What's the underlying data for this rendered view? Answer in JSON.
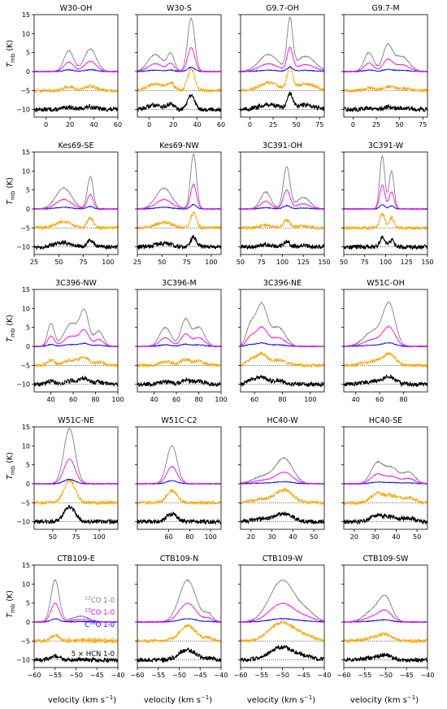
{
  "figure": {
    "ylabel_main": "T",
    "ylabel_sub": "mb",
    "ylabel_unit": " (K)",
    "xlabel": "velocity (km s",
    "xlabel_sup": "−1",
    "xlabel_close": ")"
  },
  "legend": [
    {
      "pre": "",
      "sup": "12",
      "post": "CO 1-0",
      "color": "#808080"
    },
    {
      "pre": "",
      "sup": "13",
      "post": "CO 1-0",
      "color": "#ff00ff"
    },
    {
      "pre": "C",
      "sup": "18",
      "post": "O 1-0",
      "color": "#0000ff"
    },
    {
      "pre": "5 × HCO",
      "sup": "+",
      "post": " 1-0",
      "color": "#ffa500"
    },
    {
      "pre": "5 × HCN 1-0",
      "sup": "",
      "post": "",
      "color": "#000000"
    }
  ],
  "colors": {
    "co12": "#808080",
    "co13": "#ff00ff",
    "c18o": "#0000ff",
    "hco": "#ffa500",
    "hcn": "#000000"
  },
  "chart_data": {
    "type": "line",
    "y_ticks": [
      -10,
      -5,
      0,
      5,
      10,
      15
    ],
    "ylim": [
      -12,
      15
    ],
    "offsets": {
      "co12": 0,
      "co13": 0,
      "c18o": 0,
      "hco": -5,
      "hcn": -10
    },
    "panels": [
      {
        "title": "W30-OH",
        "xlim": [
          -10,
          60
        ],
        "xticks": [
          0,
          20,
          40,
          60
        ],
        "components": [
          [
            19,
            4,
            5.5
          ],
          [
            37,
            5,
            6
          ]
        ],
        "ratio": 0.2
      },
      {
        "title": "W30-S",
        "xlim": [
          -10,
          60
        ],
        "xticks": [
          0,
          20,
          40,
          60
        ],
        "components": [
          [
            35,
            3,
            14
          ],
          [
            18,
            3,
            4.5
          ],
          [
            5,
            6,
            4.5
          ]
        ],
        "ratio": 0.45
      },
      {
        "title": "G9.7-OH",
        "xlim": [
          -10,
          80
        ],
        "xticks": [
          0,
          25,
          50,
          75
        ],
        "components": [
          [
            43,
            3,
            13
          ],
          [
            20,
            10,
            4.5
          ],
          [
            60,
            10,
            4
          ]
        ],
        "ratio": 0.5
      },
      {
        "title": "G9.7-M",
        "xlim": [
          -10,
          80
        ],
        "xticks": [
          0,
          25,
          50,
          75
        ],
        "components": [
          [
            37,
            5,
            6.5
          ],
          [
            17,
            5,
            5
          ],
          [
            52,
            8,
            4
          ]
        ],
        "ratio": 0.15
      },
      {
        "title": "Kes69-SE",
        "xlim": [
          25,
          110
        ],
        "xticks": [
          25,
          50,
          75,
          100
        ],
        "components": [
          [
            82,
            3,
            8.5
          ],
          [
            55,
            8,
            5.5
          ]
        ],
        "ratio": 0.35
      },
      {
        "title": "Kes69-NW",
        "xlim": [
          25,
          110
        ],
        "xticks": [
          25,
          50,
          75,
          100
        ],
        "components": [
          [
            82,
            3,
            14.5
          ],
          [
            52,
            8,
            5.5
          ]
        ],
        "ratio": 0.3
      },
      {
        "title": "3C391-OH",
        "xlim": [
          50,
          150
        ],
        "xticks": [
          50,
          75,
          100,
          125,
          150
        ],
        "components": [
          [
            105,
            4,
            11
          ],
          [
            80,
            6,
            4.5
          ],
          [
            125,
            8,
            3
          ]
        ],
        "ratio": 0.2
      },
      {
        "title": "3C391-W",
        "xlim": [
          50,
          150
        ],
        "xticks": [
          50,
          75,
          100,
          125,
          150
        ],
        "components": [
          [
            96,
            3,
            14
          ],
          [
            107,
            3,
            10
          ]
        ],
        "ratio": 0.3
      },
      {
        "title": "3C396-NW",
        "xlim": [
          25,
          100
        ],
        "xticks": [
          40,
          60,
          80,
          100
        ],
        "components": [
          [
            70,
            4,
            9
          ],
          [
            40,
            3,
            6
          ],
          [
            58,
            6,
            6
          ],
          [
            83,
            4,
            4
          ]
        ],
        "ratio": 0.25
      },
      {
        "title": "3C396-M",
        "xlim": [
          25,
          100
        ],
        "xticks": [
          40,
          60,
          80,
          100
        ],
        "components": [
          [
            68,
            4,
            7
          ],
          [
            50,
            5,
            5
          ],
          [
            80,
            5,
            5
          ]
        ],
        "ratio": 0.25
      },
      {
        "title": "3C396-NE",
        "xlim": [
          50,
          110
        ],
        "xticks": [
          60,
          80,
          100
        ],
        "components": [
          [
            65,
            4,
            11
          ],
          [
            57,
            3,
            5
          ],
          [
            77,
            5,
            5
          ]
        ],
        "ratio": 0.3
      },
      {
        "title": "W51C-OH",
        "xlim": [
          30,
          100
        ],
        "xticks": [
          40,
          60,
          80
        ],
        "components": [
          [
            68,
            5,
            10.5
          ],
          [
            55,
            8,
            4
          ]
        ],
        "ratio": 0.3
      },
      {
        "title": "W51C-NE",
        "xlim": [
          30,
          120
        ],
        "xticks": [
          50,
          75,
          100
        ],
        "components": [
          [
            68,
            6,
            14.5
          ]
        ],
        "ratio": 0.45
      },
      {
        "title": "W51C-C2",
        "xlim": [
          30,
          110
        ],
        "xticks": [
          60,
          80,
          100
        ],
        "components": [
          [
            63,
            5,
            10
          ]
        ],
        "ratio": 0.35
      },
      {
        "title": "HC40-W",
        "xlim": [
          15,
          55
        ],
        "xticks": [
          20,
          30,
          40,
          50
        ],
        "components": [
          [
            36,
            4,
            6.5
          ],
          [
            26,
            5,
            2
          ]
        ],
        "ratio": 0.55
      },
      {
        "title": "HC40-SE",
        "xlim": [
          15,
          55
        ],
        "xticks": [
          20,
          30,
          40,
          50
        ],
        "components": [
          [
            31,
            3,
            5.5
          ],
          [
            38,
            3,
            4
          ],
          [
            46,
            3,
            3
          ]
        ],
        "ratio": 0.5
      },
      {
        "title": "CTB109-E",
        "xlim": [
          -60,
          -40
        ],
        "xticks": [
          -60,
          -55,
          -50,
          -45,
          -40
        ],
        "components": [
          [
            -55,
            1,
            11
          ],
          [
            -49,
            2,
            1.5
          ]
        ],
        "ratio": 0.15
      },
      {
        "title": "CTB109-N",
        "xlim": [
          -60,
          -40
        ],
        "xticks": [
          -60,
          -55,
          -50,
          -45,
          -40
        ],
        "components": [
          [
            -48,
            2,
            11
          ],
          [
            -43,
            1,
            2
          ]
        ],
        "ratio": 0.4
      },
      {
        "title": "CTB109-W",
        "xlim": [
          -60,
          -40
        ],
        "xticks": [
          -60,
          -55,
          -50,
          -45,
          -40
        ],
        "components": [
          [
            -50,
            3,
            11
          ],
          [
            -44,
            2,
            2
          ]
        ],
        "ratio": 0.5
      },
      {
        "title": "CTB109-SW",
        "xlim": [
          -60,
          -40
        ],
        "xticks": [
          -60,
          -55,
          -50,
          -45,
          -40
        ],
        "components": [
          [
            -50,
            1.5,
            6
          ],
          [
            -53,
            2,
            3
          ]
        ],
        "ratio": 0.3
      }
    ]
  }
}
